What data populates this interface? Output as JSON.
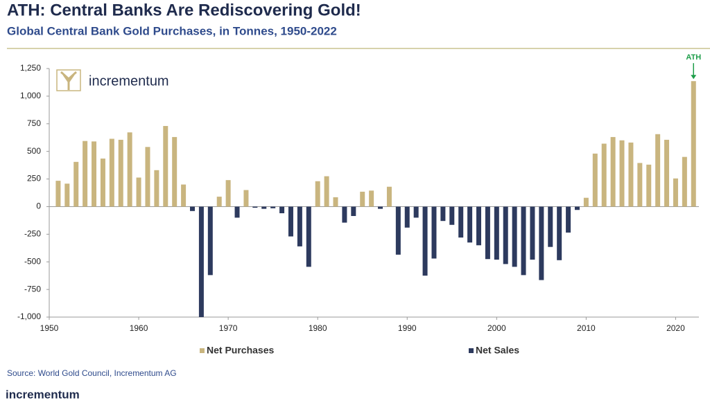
{
  "chart_data": {
    "type": "bar",
    "title": "ATH: Central Banks Are Rediscovering Gold!",
    "subtitle": "Global Central Bank Gold Purchases, in Tonnes, 1950-2022",
    "source": "Source: World Gold Council, Incrementum AG",
    "logo_text": "incrementum",
    "annotation": "ATH",
    "x": [
      1951,
      1952,
      1953,
      1954,
      1955,
      1956,
      1957,
      1958,
      1959,
      1960,
      1961,
      1962,
      1963,
      1964,
      1965,
      1966,
      1967,
      1968,
      1969,
      1970,
      1971,
      1972,
      1973,
      1974,
      1975,
      1976,
      1977,
      1978,
      1979,
      1980,
      1981,
      1982,
      1983,
      1984,
      1985,
      1986,
      1987,
      1988,
      1989,
      1990,
      1991,
      1992,
      1993,
      1994,
      1995,
      1996,
      1997,
      1998,
      1999,
      2000,
      2001,
      2002,
      2003,
      2004,
      2005,
      2006,
      2007,
      2008,
      2009,
      2010,
      2011,
      2012,
      2013,
      2014,
      2015,
      2016,
      2017,
      2018,
      2019,
      2020,
      2021,
      2022
    ],
    "series": [
      {
        "name": "Net Purchases",
        "color": "#c9b57f",
        "values": [
          234,
          208,
          405,
          594,
          590,
          435,
          614,
          605,
          672,
          263,
          540,
          330,
          730,
          630,
          200,
          null,
          null,
          null,
          90,
          240,
          null,
          150,
          null,
          null,
          null,
          null,
          null,
          null,
          null,
          230,
          275,
          85,
          null,
          null,
          135,
          145,
          null,
          180,
          null,
          null,
          null,
          null,
          null,
          null,
          null,
          null,
          null,
          null,
          null,
          null,
          null,
          null,
          null,
          null,
          null,
          null,
          null,
          null,
          null,
          80,
          480,
          570,
          630,
          600,
          580,
          395,
          380,
          656,
          605,
          255,
          450,
          1136
        ]
      },
      {
        "name": "Net Sales",
        "color": "#2d3a5e",
        "values": [
          null,
          null,
          null,
          null,
          null,
          null,
          null,
          null,
          null,
          null,
          null,
          null,
          null,
          null,
          null,
          -40,
          -1000,
          -620,
          null,
          null,
          -100,
          null,
          -10,
          -20,
          -15,
          -60,
          -270,
          -360,
          -545,
          null,
          null,
          null,
          -145,
          -85,
          null,
          null,
          -20,
          null,
          -435,
          -190,
          -100,
          -625,
          -470,
          -130,
          -165,
          -280,
          -325,
          -350,
          -475,
          -480,
          -520,
          -545,
          -620,
          -480,
          -665,
          -365,
          -485,
          -235,
          -30,
          null,
          null,
          null,
          null,
          null,
          null,
          null,
          null,
          null,
          null,
          null,
          null,
          null
        ]
      }
    ],
    "xlim": [
      1950,
      2022.6
    ],
    "xticks": [
      1950,
      1960,
      1970,
      1980,
      1990,
      2000,
      2010,
      2020
    ],
    "ylim": [
      -1000,
      1250
    ],
    "yticks": [
      {
        "value": -1000,
        "label": "-1,000"
      },
      -750,
      -500,
      -250,
      0,
      250,
      500,
      750,
      {
        "value": 1000,
        "label": "1,000"
      },
      {
        "value": 1250,
        "label": "1,250"
      }
    ]
  }
}
